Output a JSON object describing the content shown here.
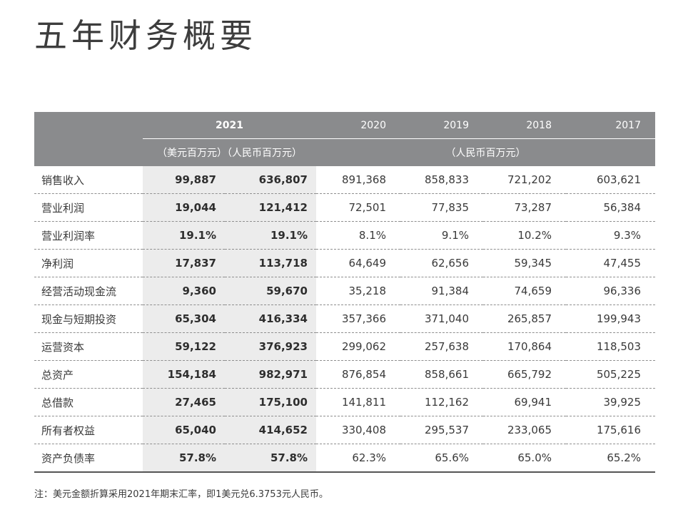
{
  "title": "五年财务概要",
  "table": {
    "head": {
      "year_2021": "2021",
      "years_other": [
        "2020",
        "2019",
        "2018",
        "2017"
      ],
      "unit_usd": "（美元百万元）",
      "unit_rmb": "（人民币百万元）",
      "unit_rmb_other": "（人民币百万元）"
    },
    "rows": [
      {
        "label": "销售收入",
        "usd": "99,887",
        "rmb": "636,807",
        "y2020": "891,368",
        "y2019": "858,833",
        "y2018": "721,202",
        "y2017": "603,621"
      },
      {
        "label": "营业利润",
        "usd": "19,044",
        "rmb": "121,412",
        "y2020": "72,501",
        "y2019": "77,835",
        "y2018": "73,287",
        "y2017": "56,384"
      },
      {
        "label": "营业利润率",
        "usd": "19.1%",
        "rmb": "19.1%",
        "y2020": "8.1%",
        "y2019": "9.1%",
        "y2018": "10.2%",
        "y2017": "9.3%"
      },
      {
        "label": "净利润",
        "usd": "17,837",
        "rmb": "113,718",
        "y2020": "64,649",
        "y2019": "62,656",
        "y2018": "59,345",
        "y2017": "47,455"
      },
      {
        "label": "经营活动现金流",
        "usd": "9,360",
        "rmb": "59,670",
        "y2020": "35,218",
        "y2019": "91,384",
        "y2018": "74,659",
        "y2017": "96,336"
      },
      {
        "label": "现金与短期投资",
        "usd": "65,304",
        "rmb": "416,334",
        "y2020": "357,366",
        "y2019": "371,040",
        "y2018": "265,857",
        "y2017": "199,943"
      },
      {
        "label": "运营资本",
        "usd": "59,122",
        "rmb": "376,923",
        "y2020": "299,062",
        "y2019": "257,638",
        "y2018": "170,864",
        "y2017": "118,503"
      },
      {
        "label": "总资产",
        "usd": "154,184",
        "rmb": "982,971",
        "y2020": "876,854",
        "y2019": "858,661",
        "y2018": "665,792",
        "y2017": "505,225"
      },
      {
        "label": "总借款",
        "usd": "27,465",
        "rmb": "175,100",
        "y2020": "141,811",
        "y2019": "112,162",
        "y2018": "69,941",
        "y2017": "39,925"
      },
      {
        "label": "所有者权益",
        "usd": "65,040",
        "rmb": "414,652",
        "y2020": "330,408",
        "y2019": "295,537",
        "y2018": "233,065",
        "y2017": "175,616"
      },
      {
        "label": "资产负债率",
        "usd": "57.8%",
        "rmb": "57.8%",
        "y2020": "62.3%",
        "y2019": "65.6%",
        "y2018": "65.0%",
        "y2017": "65.2%"
      }
    ]
  },
  "note": "注：美元金额折算采用2021年期末汇率，即1美元兑6.3753元人民币。"
}
